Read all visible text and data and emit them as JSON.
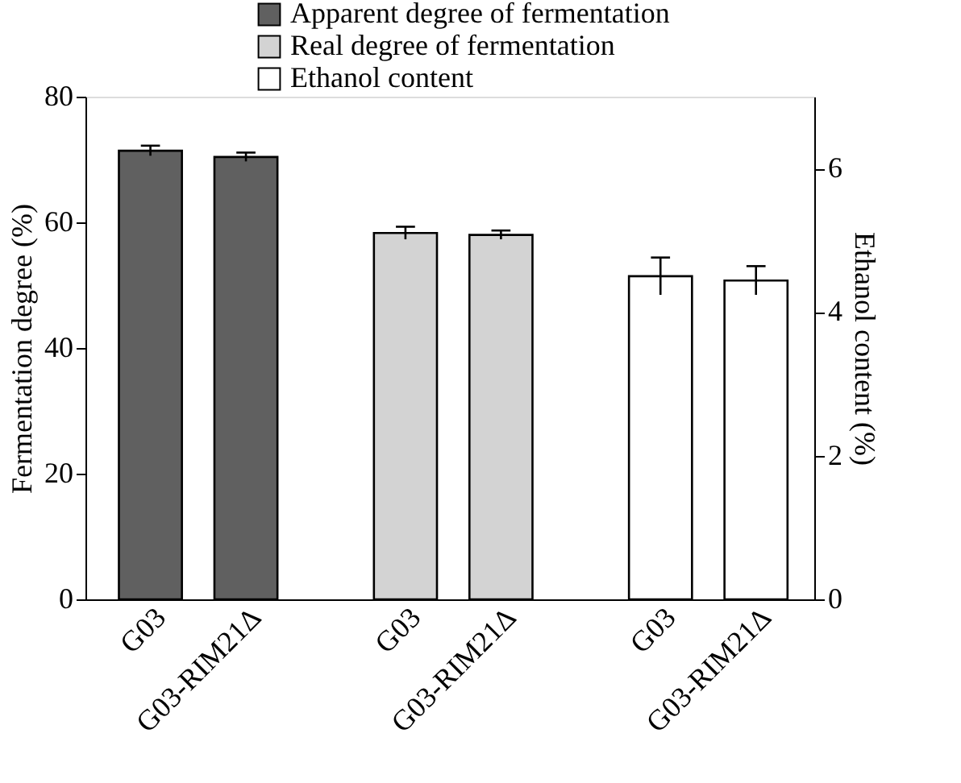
{
  "chart_data": {
    "type": "bar",
    "categories": [
      "G03",
      "G03-RIM21Δ",
      "G03",
      "G03-RIM21Δ",
      "G03",
      "G03-RIM21Δ"
    ],
    "series": [
      {
        "name": "Apparent degree of fermentation",
        "color": "#606060",
        "values": [
          71.4,
          70.4,
          null,
          null,
          null,
          null
        ],
        "errors": [
          0.8,
          0.7,
          null,
          null,
          null,
          null
        ]
      },
      {
        "name": "Real degree of fermentation",
        "color": "#d3d3d3",
        "values": [
          null,
          null,
          58.3,
          58.0,
          null,
          null
        ],
        "errors": [
          null,
          null,
          1.0,
          0.7,
          null,
          null
        ]
      },
      {
        "name": "Ethanol content",
        "color": "#ffffff",
        "axis": "y2",
        "values": [
          null,
          null,
          null,
          null,
          4.5,
          4.44
        ],
        "errors": [
          null,
          null,
          null,
          null,
          0.26,
          0.2
        ]
      }
    ],
    "ylabel": "Fermentation degree (%)",
    "y2label": "Ethanol content (%)",
    "ylim": [
      0,
      80
    ],
    "yticks": [
      0,
      20,
      40,
      60,
      80
    ],
    "y2lim": [
      0,
      7
    ],
    "y2ticks": [
      0,
      2,
      4,
      6
    ],
    "legend": "top",
    "grid": false
  }
}
